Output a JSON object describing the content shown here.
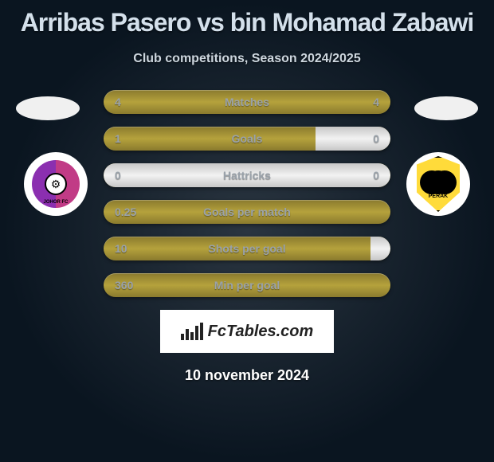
{
  "title": "Arribas Pasero vs bin Mohamad Zabawi",
  "subtitle": "Club competitions, Season 2024/2025",
  "date": "10 november 2024",
  "logo_text": "FcTables.com",
  "colors": {
    "empty_bar": "linear-gradient(to bottom, #c7c7c7 0%, #f2f2f2 50%, #c7c7c7 100%)",
    "fill_bar": "linear-gradient(to bottom, #8a7a2e 0%, #b5a23c 50%, #8a7a2e 100%)",
    "title_color": "#d4e0eb",
    "label_color": "#9aa2aa"
  },
  "clubs": {
    "left": {
      "name": "Johor FC",
      "colors": [
        "#8b2fb0",
        "#c13b86"
      ]
    },
    "right": {
      "name": "Perak",
      "colors": [
        "#ffdb3a",
        "#000000"
      ]
    }
  },
  "stats": [
    {
      "label": "Matches",
      "a": "4",
      "b": "4",
      "a_pct": 0,
      "b_pct": 0
    },
    {
      "label": "Goals",
      "a": "1",
      "b": "0",
      "a_pct": 0,
      "b_pct": 26
    },
    {
      "label": "Hattricks",
      "a": "0",
      "b": "0",
      "a_pct": 50,
      "b_pct": 50
    },
    {
      "label": "Goals per match",
      "a": "0.25",
      "b": "",
      "a_pct": 0,
      "b_pct": 0
    },
    {
      "label": "Shots per goal",
      "a": "10",
      "b": "",
      "a_pct": 0,
      "b_pct": 7
    },
    {
      "label": "Min per goal",
      "a": "360",
      "b": "",
      "a_pct": 0,
      "b_pct": 0
    }
  ]
}
